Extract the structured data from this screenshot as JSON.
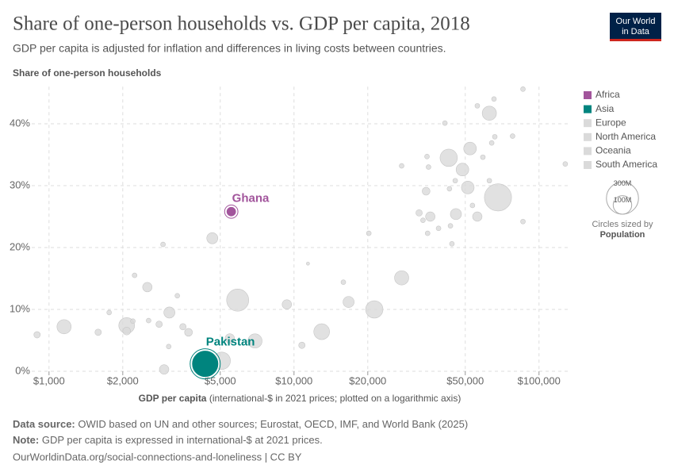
{
  "logo": [
    "Our World",
    "in Data"
  ],
  "chart_data": {
    "type": "scatter",
    "title": "Share of one-person households vs. GDP per capita, 2018",
    "subtitle": "GDP per capita is adjusted for inflation and differences in living costs between countries.",
    "y_label": "Share of one-person households",
    "x_label": "GDP per capita",
    "x_label_note": " (international-$ in 2021 prices; plotted on a logarithmic axis)",
    "x_log": true,
    "grid": true,
    "xlim": [
      850,
      131000
    ],
    "ylim": [
      0,
      46
    ],
    "xticks": [
      {
        "value": 1000,
        "label": "$1,000"
      },
      {
        "value": 2000,
        "label": "$2,000"
      },
      {
        "value": 5000,
        "label": "$5,000"
      },
      {
        "value": 10000,
        "label": "$10,000"
      },
      {
        "value": 20000,
        "label": "$20,000"
      },
      {
        "value": 50000,
        "label": "$50,000"
      },
      {
        "value": 100000,
        "label": "$100,000"
      }
    ],
    "yticks": [
      {
        "value": 0,
        "label": "0%"
      },
      {
        "value": 10,
        "label": "10%"
      },
      {
        "value": 20,
        "label": "20%"
      },
      {
        "value": 30,
        "label": "30%"
      },
      {
        "value": 40,
        "label": "40%"
      }
    ],
    "muted_color": "#dadada",
    "series": [
      {
        "name": "Africa",
        "color": "#a2559c",
        "x": [
          5545,
          894,
          1152,
          1587,
          1760,
          2075,
          2075,
          2200,
          2520,
          2815,
          2950,
          3080,
          3100,
          3520,
          3710,
          4640,
          12970
        ],
        "values": [
          25.8,
          5.9,
          7.2,
          6.3,
          9.5,
          7.4,
          6.5,
          8.1,
          13.6,
          7.6,
          0.3,
          4.0,
          9.5,
          7.2,
          6.3,
          21.5,
          6.4
        ],
        "sizes": [
          30000000,
          12000000,
          59000000,
          12000000,
          6600000,
          73000000,
          18000000,
          6600000,
          26000000,
          12000000,
          26000000,
          6600000,
          36000000,
          12000000,
          18000000,
          36000000,
          73000000
        ],
        "point_labels": [
          "Ghana",
          null,
          null,
          null,
          null,
          null,
          null,
          null,
          null,
          null,
          null,
          null,
          null,
          null,
          null,
          null,
          null
        ]
      },
      {
        "name": "Asia",
        "color": "#00847e",
        "x": [
          4340,
          5070,
          5470,
          5890,
          6930,
          9350,
          10770,
          21270,
          27500,
          2235,
          2920
        ],
        "values": [
          1.2,
          1.7,
          5.3,
          11.5,
          4.9,
          10.8,
          4.2,
          10.0,
          15.1,
          15.5,
          20.5
        ],
        "sizes": [
          212000000,
          88000000,
          26000000,
          143000000,
          59000000,
          26000000,
          12000000,
          88000000,
          59000000,
          6600000,
          6600000
        ],
        "point_labels": [
          "Pakistan",
          null,
          null,
          null,
          null,
          null,
          null,
          null,
          null,
          null,
          null
        ]
      },
      {
        "name": "Europe",
        "color": "#dadada",
        "x": [
          27500,
          32400,
          33600,
          34600,
          34900,
          35400,
          35100,
          38900,
          41300,
          42800,
          43100,
          43500,
          44100,
          45500,
          45800,
          48700,
          51200,
          53500,
          56000,
          56000,
          59000,
          62700,
          62700,
          64100,
          66000,
          65500,
          78000,
          86000,
          86000,
          128000
        ],
        "values": [
          33.2,
          25.6,
          24.4,
          29.1,
          34.7,
          33.0,
          22.3,
          23.1,
          40.1,
          34.5,
          29.5,
          23.5,
          20.6,
          30.8,
          25.4,
          32.6,
          29.7,
          26.8,
          25.0,
          42.9,
          34.6,
          41.7,
          30.8,
          36.9,
          37.9,
          44.0,
          38.0,
          45.6,
          24.2,
          33.5
        ],
        "sizes": [
          6600000,
          12000000,
          6600000,
          18000000,
          6600000,
          6600000,
          6600000,
          6600000,
          6600000,
          88000000,
          6600000,
          6600000,
          6600000,
          6600000,
          36000000,
          47000000,
          47000000,
          6600000,
          26000000,
          6600000,
          6600000,
          59000000,
          6600000,
          6600000,
          6600000,
          6600000,
          6600000,
          6600000,
          6600000,
          6600000
        ],
        "point_labels": [
          null,
          null,
          null,
          null,
          null,
          null,
          null,
          null,
          null,
          null,
          null,
          null,
          null,
          null,
          null,
          null,
          null,
          null,
          null,
          null,
          null,
          null,
          null,
          null,
          null,
          null,
          null,
          null,
          null,
          null
        ]
      },
      {
        "name": "North America",
        "color": "#dadada",
        "x": [
          68000,
          16700,
          15900,
          20200,
          3340,
          2550
        ],
        "values": [
          28.1,
          11.2,
          14.4,
          22.3,
          12.2,
          8.2
        ],
        "sizes": [
          215000000,
          36000000,
          6600000,
          6600000,
          6600000,
          6600000
        ],
        "point_labels": [
          null,
          null,
          null,
          null,
          null,
          null
        ]
      },
      {
        "name": "Oceania",
        "color": "#dadada",
        "x": [
          52300
        ],
        "values": [
          36.0
        ],
        "sizes": [
          47000000
        ],
        "point_labels": [
          null
        ]
      },
      {
        "name": "South America",
        "color": "#dadada",
        "x": [
          11400,
          36000
        ],
        "values": [
          17.4,
          25.0
        ],
        "sizes": [
          3000000,
          26000000
        ],
        "point_labels": [
          null,
          null
        ]
      }
    ],
    "size_legend": {
      "title": "Circles sized by",
      "variable": "Population",
      "sizes": [
        {
          "value": 300000000,
          "label": "300M"
        },
        {
          "value": 100000000,
          "label": "100M"
        }
      ]
    }
  },
  "footer": {
    "source_label": "Data source:",
    "source": " OWID based on UN and other sources; Eurostat, OECD, IMF, and World Bank (2025)",
    "note_label": "Note:",
    "note": " GDP per capita is expressed in international-$ at 2021 prices.",
    "url": "OurWorldinData.org/social-connections-and-loneliness | CC BY"
  }
}
